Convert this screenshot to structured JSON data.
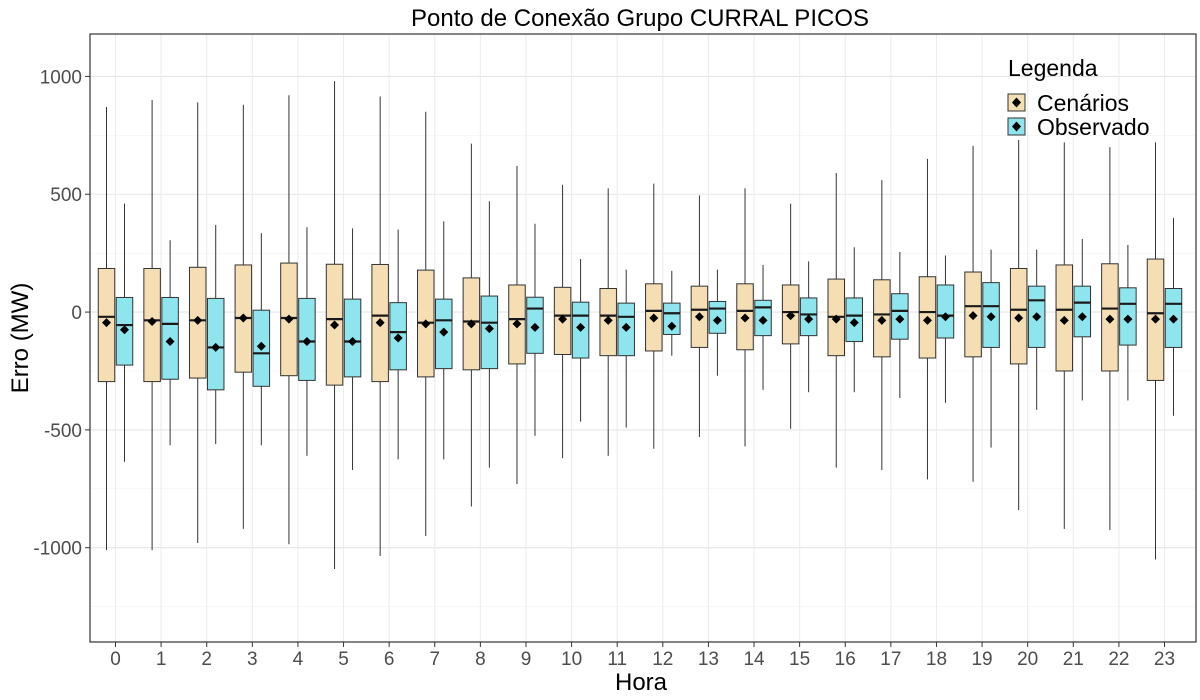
{
  "chart_data": {
    "type": "boxplot",
    "title": "Ponto de Conexão Grupo CURRAL PICOS",
    "xlabel": "Hora",
    "ylabel": "Erro (MW)",
    "categories": [
      "0",
      "1",
      "2",
      "3",
      "4",
      "5",
      "6",
      "7",
      "8",
      "9",
      "10",
      "11",
      "12",
      "13",
      "14",
      "15",
      "16",
      "17",
      "18",
      "19",
      "20",
      "21",
      "22",
      "23"
    ],
    "ylim": [
      -1400,
      1180
    ],
    "yticks": [
      -1000,
      -500,
      0,
      500,
      1000
    ],
    "yticklabels": [
      "-1000",
      "-500",
      "0",
      "500",
      "1000"
    ],
    "legend": {
      "title": "Legenda",
      "position": "top-right"
    },
    "series": [
      {
        "name": "Cenários",
        "color": "#f5deb3",
        "boxes": [
          {
            "min": -1010,
            "q1": -295,
            "median": -20,
            "q3": 185,
            "max": 870,
            "mean": -45
          },
          {
            "min": -1010,
            "q1": -295,
            "median": -35,
            "q3": 185,
            "max": 900,
            "mean": -40
          },
          {
            "min": -980,
            "q1": -280,
            "median": -35,
            "q3": 190,
            "max": 890,
            "mean": -35
          },
          {
            "min": -920,
            "q1": -255,
            "median": -25,
            "q3": 200,
            "max": 880,
            "mean": -25
          },
          {
            "min": -985,
            "q1": -270,
            "median": -25,
            "q3": 208,
            "max": 920,
            "mean": -30
          },
          {
            "min": -1090,
            "q1": -310,
            "median": -30,
            "q3": 203,
            "max": 980,
            "mean": -55
          },
          {
            "min": -1035,
            "q1": -295,
            "median": -15,
            "q3": 202,
            "max": 915,
            "mean": -45
          },
          {
            "min": -950,
            "q1": -275,
            "median": -45,
            "q3": 178,
            "max": 850,
            "mean": -50
          },
          {
            "min": -825,
            "q1": -245,
            "median": -40,
            "q3": 145,
            "max": 715,
            "mean": -50
          },
          {
            "min": -730,
            "q1": -220,
            "median": -30,
            "q3": 115,
            "max": 620,
            "mean": -50
          },
          {
            "min": -620,
            "q1": -180,
            "median": -15,
            "q3": 105,
            "max": 540,
            "mean": -30
          },
          {
            "min": -610,
            "q1": -185,
            "median": -15,
            "q3": 100,
            "max": 525,
            "mean": -35
          },
          {
            "min": -580,
            "q1": -165,
            "median": 5,
            "q3": 120,
            "max": 545,
            "mean": -25
          },
          {
            "min": -530,
            "q1": -150,
            "median": 10,
            "q3": 110,
            "max": 495,
            "mean": -20
          },
          {
            "min": -570,
            "q1": -160,
            "median": 5,
            "q3": 120,
            "max": 525,
            "mean": -25
          },
          {
            "min": -495,
            "q1": -135,
            "median": 0,
            "q3": 115,
            "max": 460,
            "mean": -15
          },
          {
            "min": -660,
            "q1": -185,
            "median": -20,
            "q3": 140,
            "max": 590,
            "mean": -30
          },
          {
            "min": -670,
            "q1": -190,
            "median": -10,
            "q3": 137,
            "max": 560,
            "mean": -35
          },
          {
            "min": -710,
            "q1": -195,
            "median": 0,
            "q3": 150,
            "max": 650,
            "mean": -35
          },
          {
            "min": -720,
            "q1": -190,
            "median": 25,
            "q3": 170,
            "max": 705,
            "mean": -15
          },
          {
            "min": -840,
            "q1": -220,
            "median": 10,
            "q3": 185,
            "max": 730,
            "mean": -25
          },
          {
            "min": -920,
            "q1": -250,
            "median": 10,
            "q3": 200,
            "max": 720,
            "mean": -35
          },
          {
            "min": -925,
            "q1": -250,
            "median": 15,
            "q3": 205,
            "max": 700,
            "mean": -30
          },
          {
            "min": -1050,
            "q1": -290,
            "median": -5,
            "q3": 225,
            "max": 720,
            "mean": -30
          }
        ]
      },
      {
        "name": "Observado",
        "color": "#8ee5ee",
        "boxes": [
          {
            "min": -635,
            "q1": -225,
            "median": -55,
            "q3": 62,
            "max": 460,
            "mean": -75
          },
          {
            "min": -565,
            "q1": -285,
            "median": -50,
            "q3": 62,
            "max": 305,
            "mean": -125
          },
          {
            "min": -560,
            "q1": -330,
            "median": -150,
            "q3": 58,
            "max": 370,
            "mean": -150
          },
          {
            "min": -565,
            "q1": -315,
            "median": -175,
            "q3": 8,
            "max": 335,
            "mean": -145
          },
          {
            "min": -610,
            "q1": -290,
            "median": -125,
            "q3": 58,
            "max": 360,
            "mean": -125
          },
          {
            "min": -670,
            "q1": -275,
            "median": -125,
            "q3": 55,
            "max": 355,
            "mean": -125
          },
          {
            "min": -625,
            "q1": -245,
            "median": -85,
            "q3": 40,
            "max": 350,
            "mean": -110
          },
          {
            "min": -625,
            "q1": -240,
            "median": -35,
            "q3": 55,
            "max": 385,
            "mean": -85
          },
          {
            "min": -660,
            "q1": -240,
            "median": -45,
            "q3": 68,
            "max": 470,
            "mean": -70
          },
          {
            "min": -525,
            "q1": -175,
            "median": 15,
            "q3": 63,
            "max": 375,
            "mean": -65
          },
          {
            "min": -465,
            "q1": -195,
            "median": -15,
            "q3": 42,
            "max": 225,
            "mean": -65
          },
          {
            "min": -490,
            "q1": -185,
            "median": -20,
            "q3": 38,
            "max": 180,
            "mean": -65
          },
          {
            "min": -185,
            "q1": -95,
            "median": -5,
            "q3": 38,
            "max": 175,
            "mean": -60
          },
          {
            "min": -270,
            "q1": -90,
            "median": 15,
            "q3": 45,
            "max": 180,
            "mean": -35
          },
          {
            "min": -330,
            "q1": -100,
            "median": 20,
            "q3": 50,
            "max": 200,
            "mean": -35
          },
          {
            "min": -340,
            "q1": -100,
            "median": -10,
            "q3": 60,
            "max": 215,
            "mean": -30
          },
          {
            "min": -340,
            "q1": -125,
            "median": -15,
            "q3": 60,
            "max": 275,
            "mean": -45
          },
          {
            "min": -365,
            "q1": -115,
            "median": 5,
            "q3": 78,
            "max": 255,
            "mean": -30
          },
          {
            "min": -385,
            "q1": -110,
            "median": -15,
            "q3": 115,
            "max": 240,
            "mean": -20
          },
          {
            "min": -575,
            "q1": -150,
            "median": 25,
            "q3": 125,
            "max": 265,
            "mean": -20
          },
          {
            "min": -415,
            "q1": -150,
            "median": 50,
            "q3": 110,
            "max": 265,
            "mean": -20
          },
          {
            "min": -375,
            "q1": -105,
            "median": 40,
            "q3": 110,
            "max": 310,
            "mean": -20
          },
          {
            "min": -375,
            "q1": -140,
            "median": 35,
            "q3": 103,
            "max": 285,
            "mean": -30
          },
          {
            "min": -440,
            "q1": -150,
            "median": 35,
            "q3": 100,
            "max": 400,
            "mean": -30
          }
        ]
      }
    ]
  }
}
